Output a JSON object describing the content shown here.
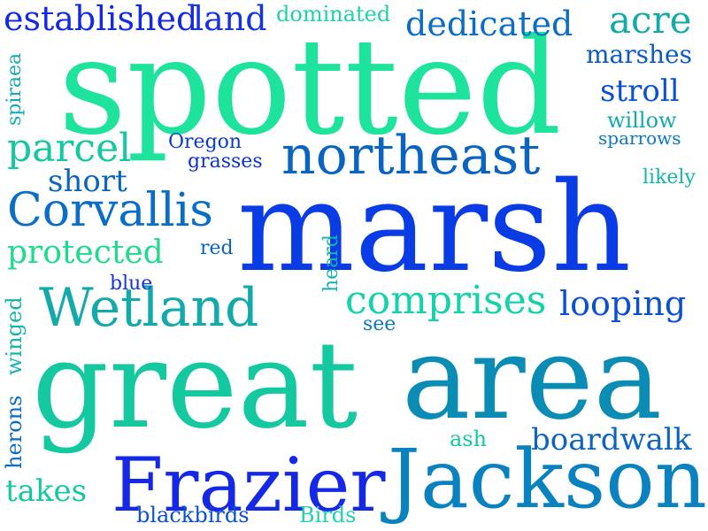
{
  "word_cloud": {
    "words": [
      {
        "text": "spotted",
        "color": "#1ee39c"
      },
      {
        "text": "marsh",
        "color": "#0a3ce6"
      },
      {
        "text": "great",
        "color": "#14c8a0"
      },
      {
        "text": "area",
        "color": "#0a8cb4"
      },
      {
        "text": "Frazier",
        "color": "#1428e6"
      },
      {
        "text": "Jackson",
        "color": "#0a82c0"
      },
      {
        "text": "Wetland",
        "color": "#14aaaa"
      },
      {
        "text": "northeast",
        "color": "#0a64c0"
      },
      {
        "text": "Corvallis",
        "color": "#0a6ec8"
      },
      {
        "text": "comprises",
        "color": "#14d2aa"
      },
      {
        "text": "established",
        "color": "#1428e6"
      },
      {
        "text": "land",
        "color": "#1432e6"
      },
      {
        "text": "dedicated",
        "color": "#0a6ec8"
      },
      {
        "text": "acre",
        "color": "#14aaaa"
      },
      {
        "text": "dominated",
        "color": "#1ed2aa"
      },
      {
        "text": "parcel",
        "color": "#14c8a0"
      },
      {
        "text": "protected",
        "color": "#1edc8c"
      },
      {
        "text": "looping",
        "color": "#0a50d2"
      },
      {
        "text": "boardwalk",
        "color": "#0a64c0"
      },
      {
        "text": "takes",
        "color": "#14c8a0"
      },
      {
        "text": "short",
        "color": "#0a64c0"
      },
      {
        "text": "stroll",
        "color": "#0a50d2"
      },
      {
        "text": "marshes",
        "color": "#0a5ac8"
      },
      {
        "text": "willow",
        "color": "#14aaaa"
      },
      {
        "text": "sparrows",
        "color": "#0a78c8"
      },
      {
        "text": "likely",
        "color": "#14b4aa"
      },
      {
        "text": "Oregon",
        "color": "#0a3cd2"
      },
      {
        "text": "grasses",
        "color": "#0a32d2"
      },
      {
        "text": "red",
        "color": "#0a64c8"
      },
      {
        "text": "blue",
        "color": "#1432e6"
      },
      {
        "text": "see",
        "color": "#0a78c8"
      },
      {
        "text": "ash",
        "color": "#14c8a0"
      },
      {
        "text": "blackbirds",
        "color": "#0a50d2"
      },
      {
        "text": "Birds",
        "color": "#1ed2aa"
      },
      {
        "text": "spiraea",
        "color": "#14aab4"
      },
      {
        "text": "winged",
        "color": "#14b4aa"
      },
      {
        "text": "herons",
        "color": "#0a6ec8"
      },
      {
        "text": "heard",
        "color": "#14b4aa"
      }
    ]
  }
}
